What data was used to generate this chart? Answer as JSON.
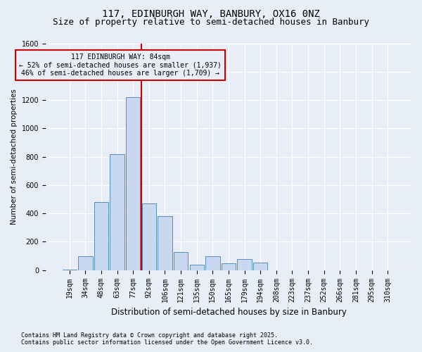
{
  "title1": "117, EDINBURGH WAY, BANBURY, OX16 0NZ",
  "title2": "Size of property relative to semi-detached houses in Banbury",
  "xlabel": "Distribution of semi-detached houses by size in Banbury",
  "ylabel": "Number of semi-detached properties",
  "categories": [
    "19sqm",
    "34sqm",
    "48sqm",
    "63sqm",
    "77sqm",
    "92sqm",
    "106sqm",
    "121sqm",
    "135sqm",
    "150sqm",
    "165sqm",
    "179sqm",
    "194sqm",
    "208sqm",
    "223sqm",
    "237sqm",
    "252sqm",
    "266sqm",
    "281sqm",
    "295sqm",
    "310sqm"
  ],
  "values": [
    5,
    100,
    480,
    820,
    1220,
    470,
    380,
    130,
    40,
    100,
    50,
    80,
    55,
    0,
    0,
    0,
    0,
    0,
    0,
    0,
    0
  ],
  "bar_color": "#c8d8f0",
  "bar_edge_color": "#5b8db8",
  "vline_color": "#cc0000",
  "ylim": [
    0,
    1600
  ],
  "yticks": [
    0,
    200,
    400,
    600,
    800,
    1000,
    1200,
    1400,
    1600
  ],
  "annotation_title": "117 EDINBURGH WAY: 84sqm",
  "annotation_line1": "← 52% of semi-detached houses are smaller (1,937)",
  "annotation_line2": "46% of semi-detached houses are larger (1,709) →",
  "footnote1": "Contains HM Land Registry data © Crown copyright and database right 2025.",
  "footnote2": "Contains public sector information licensed under the Open Government Licence v3.0.",
  "bg_color": "#e8eef8",
  "grid_color": "#ffffff",
  "title1_fontsize": 10,
  "title2_fontsize": 9,
  "xlabel_fontsize": 8.5,
  "ylabel_fontsize": 7.5,
  "tick_fontsize": 7,
  "annotation_fontsize": 7,
  "footnote_fontsize": 6
}
